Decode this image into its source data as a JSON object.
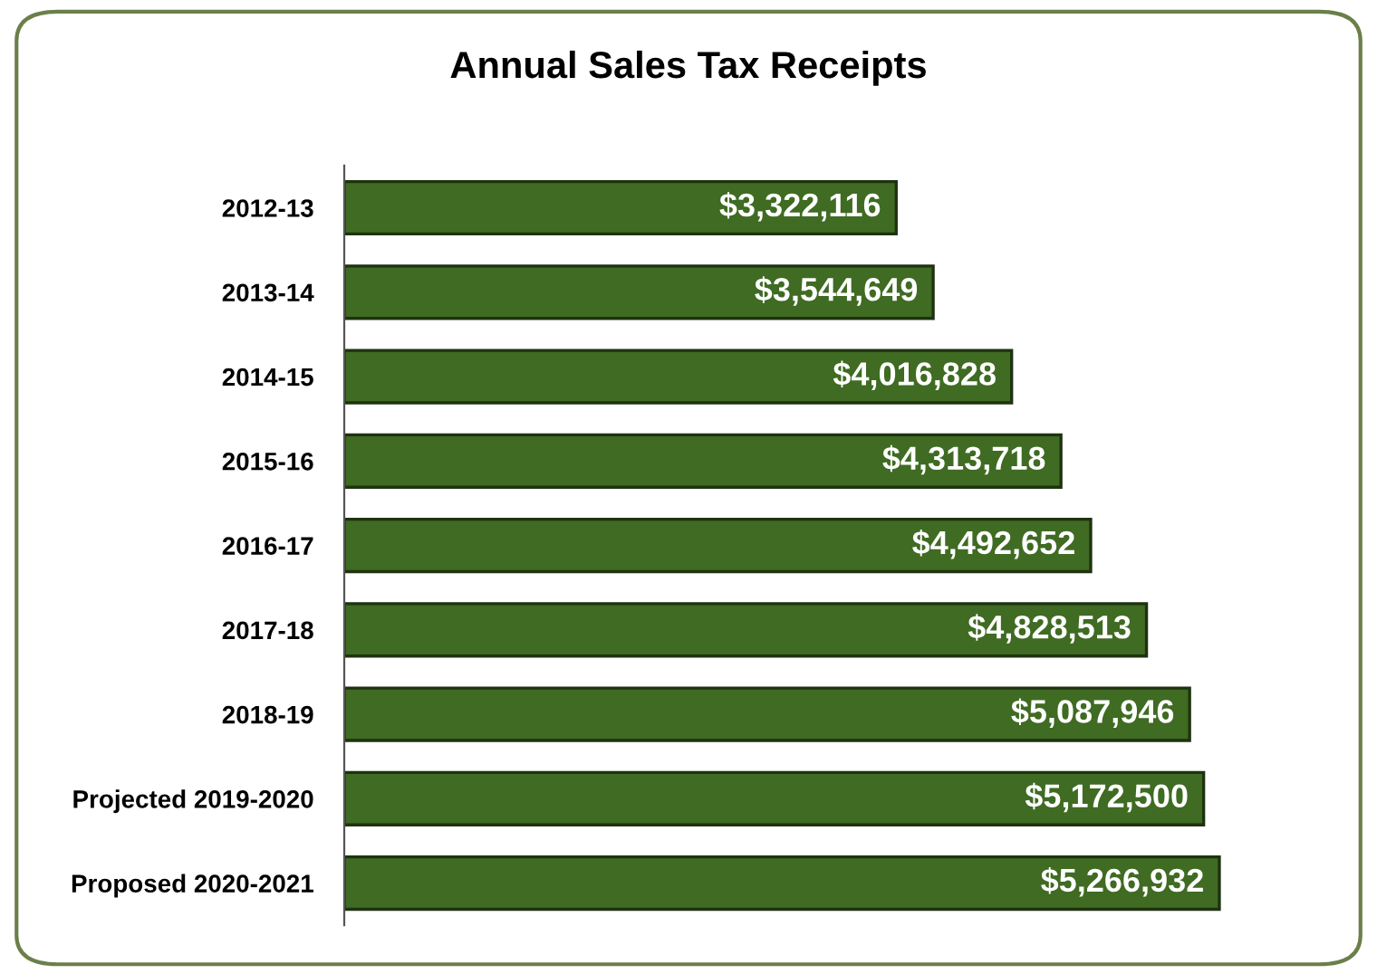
{
  "chart_data": {
    "type": "bar",
    "orientation": "horizontal",
    "title": "Annual Sales Tax Receipts",
    "categories": [
      "2012-13",
      "2013-14",
      "2014-15",
      "2015-16",
      "2016-17",
      "2017-18",
      "2018-19",
      "Projected 2019-2020",
      "Proposed 2020-2021"
    ],
    "values": [
      3322116,
      3544649,
      4016828,
      4313718,
      4492652,
      4828513,
      5087946,
      5172500,
      5266932
    ],
    "value_labels": [
      "$3,322,116",
      "$3,544,649",
      "$4,016,828",
      "$4,313,718",
      "$4,492,652",
      "$4,828,513",
      "$5,087,946",
      "$5,172,500",
      "$5,266,932"
    ],
    "color": "#3f6b22",
    "tick_labels": "y",
    "grid": false,
    "legend": false
  }
}
